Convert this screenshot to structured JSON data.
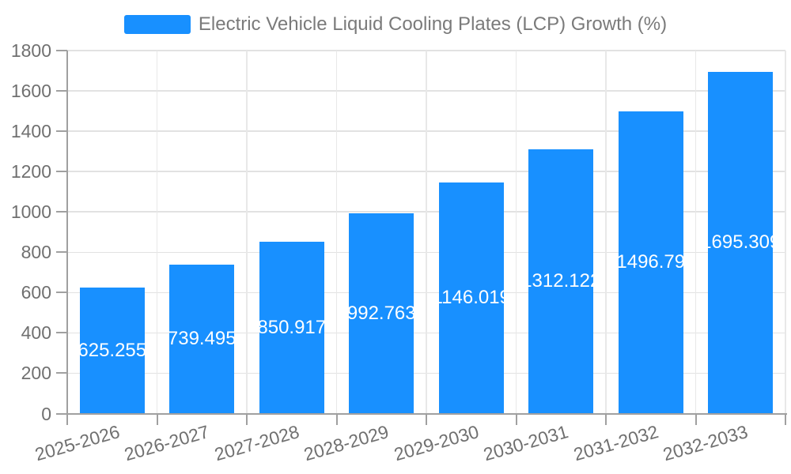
{
  "chart_data": {
    "type": "bar",
    "title": "Electric Vehicle Liquid Cooling Plates (LCP) Growth (%)",
    "series_name": "Electric Vehicle Liquid Cooling Plates (LCP) Growth (%)",
    "categories": [
      "2025-2026",
      "2026-2027",
      "2027-2028",
      "2028-2029",
      "2029-2030",
      "2030-2031",
      "2031-2032",
      "2032-2033"
    ],
    "values": [
      625.255,
      739.495,
      850.917,
      992.763,
      1146.019,
      1312.122,
      1496.79,
      1695.309
    ],
    "bar_labels": [
      "625.255",
      "739.495",
      "850.917",
      "992.763",
      "1146.019",
      "1312.122",
      "1496.79",
      "1695.309"
    ],
    "xlabel": "",
    "ylabel": "",
    "ylim": [
      0,
      1800
    ],
    "yticks": [
      0,
      200,
      400,
      600,
      800,
      1000,
      1200,
      1400,
      1600,
      1800
    ],
    "grid": true,
    "legend_position": "top-center"
  },
  "colors": {
    "background": "#FFFFFF",
    "bar": "#1890FF",
    "bar_label": "#FFFFFF",
    "axis_line": "#A0A0A0",
    "h_grid_line": "#E2E2E2",
    "v_grid_line": "#E8E8E8",
    "axis_label": "#707070",
    "legend_text": "#7A7A7A"
  }
}
